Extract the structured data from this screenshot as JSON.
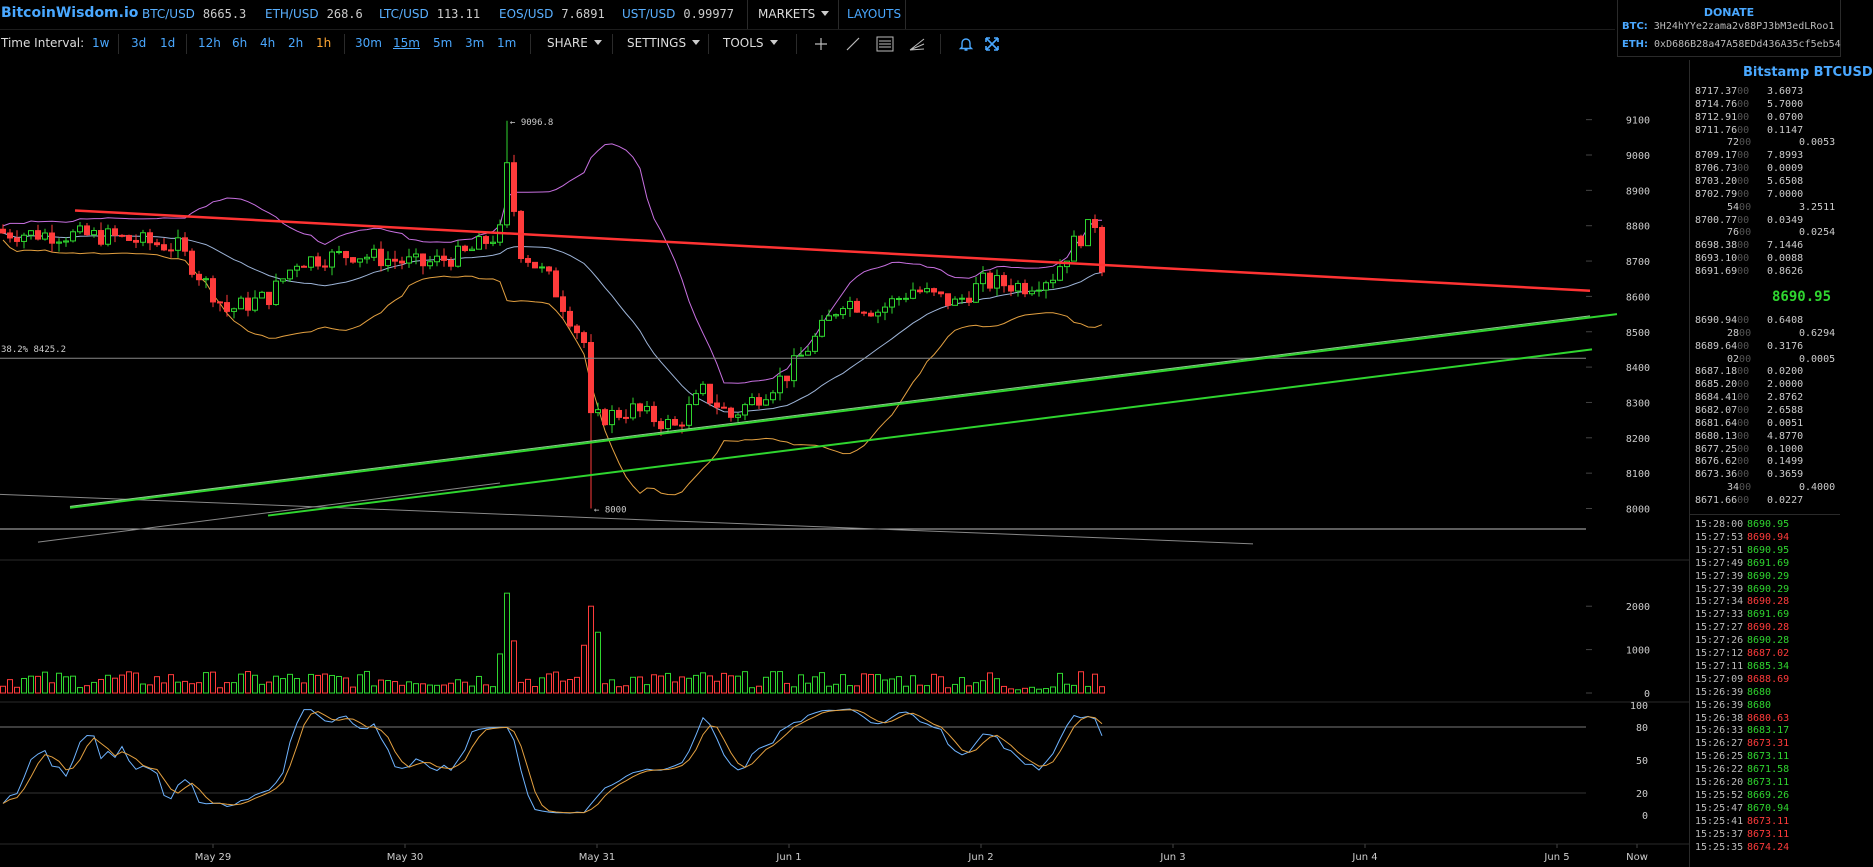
{
  "header": {
    "logo": "BitcoinWisdom.io",
    "tickers": [
      {
        "name": "BTC/USD",
        "value": "8665.3"
      },
      {
        "name": "ETH/USD",
        "value": "268.6"
      },
      {
        "name": "LTC/USD",
        "value": "113.11"
      },
      {
        "name": "EOS/USD",
        "value": "7.6891"
      },
      {
        "name": "UST/USD",
        "value": "0.99977"
      }
    ],
    "markets_label": "MARKETS",
    "layouts_label": "LAYOUTS"
  },
  "donate": {
    "title": "DONATE",
    "btc_label": "BTC:",
    "btc_address": "3H24hYYe2zama2v88PJ3bM3edLRoo1",
    "eth_label": "ETH:",
    "eth_address": "0xD686B28a47A58EDd436A35cf5eb54"
  },
  "toolbar": {
    "time_interval_label": "Time Interval:",
    "intervals": [
      "1w",
      "3d",
      "1d",
      "12h",
      "6h",
      "4h",
      "2h",
      "1h",
      "30m",
      "15m",
      "5m",
      "3m",
      "1m"
    ],
    "active_interval": "1h",
    "underlined_interval": "15m",
    "share_label": "SHARE",
    "settings_label": "SETTINGS",
    "tools_label": "TOOLS",
    "tool_icons": [
      "crosshair-icon",
      "draw-line-icon",
      "horizontal-lines-icon",
      "fan-lines-icon",
      "alert-bell-icon",
      "fullscreen-icon"
    ]
  },
  "colors": {
    "up": "#2fd52f",
    "down": "#ff3b3b",
    "accent_blue": "#4aa8ff",
    "active_orange": "#ffa733",
    "trendline_red": "#ff3333",
    "trendline_green": "#2fd52f",
    "band_purple": "#c770e0",
    "band_orange": "#e3a040"
  },
  "chart_data": {
    "type": "candlestick",
    "x_ticks": [
      "May 29",
      "May 30",
      "May 31",
      "Jun 1",
      "Jun 2",
      "Jun 3",
      "Jun 4",
      "Jun 5",
      "Now"
    ],
    "price_axis_ticks": [
      8000,
      8100,
      8200,
      8300,
      8400,
      8500,
      8600,
      8700,
      8800,
      8900,
      9000,
      9100
    ],
    "volume_axis_ticks": [
      0,
      1000,
      2000
    ],
    "stoch_axis_ticks": [
      0,
      20,
      50,
      80,
      100
    ],
    "annotations": {
      "high": "← 9096.8",
      "low": "← 8000",
      "fib": "38.2% 8425.2"
    },
    "fib_level": 8425.2,
    "high_value": 9096.8,
    "low_value": 8000,
    "last_price": 8690.95
  },
  "right_panel": {
    "title": "Bitstamp BTCUSD",
    "last_price": "8690.95",
    "asks": [
      {
        "p": "8717.37",
        "a": "3.6073"
      },
      {
        "p": "8714.76",
        "a": "5.7000"
      },
      {
        "p": "8712.91",
        "a": "0.0700"
      },
      {
        "p": "8711.76",
        "a": "0.1147"
      },
      {
        "p": "72",
        "a": "0.0053"
      },
      {
        "p": "8709.17",
        "a": "7.8993"
      },
      {
        "p": "8706.73",
        "a": "0.0009"
      },
      {
        "p": "8703.20",
        "a": "5.6508"
      },
      {
        "p": "8702.79",
        "a": "7.0000"
      },
      {
        "p": "54",
        "a": "3.2511"
      },
      {
        "p": "8700.77",
        "a": "0.0349"
      },
      {
        "p": "76",
        "a": "0.0254"
      },
      {
        "p": "8698.38",
        "a": "7.1446"
      },
      {
        "p": "8693.10",
        "a": "0.0088"
      },
      {
        "p": "8691.69",
        "a": "0.8626"
      }
    ],
    "bids": [
      {
        "p": "8690.94",
        "a": "0.6408"
      },
      {
        "p": "28",
        "a": "0.6294"
      },
      {
        "p": "8689.64",
        "a": "0.3176"
      },
      {
        "p": "02",
        "a": "0.0005"
      },
      {
        "p": "8687.18",
        "a": "0.0200"
      },
      {
        "p": "8685.20",
        "a": "2.0000"
      },
      {
        "p": "8684.41",
        "a": "2.8762"
      },
      {
        "p": "8682.07",
        "a": "2.6588"
      },
      {
        "p": "8681.64",
        "a": "0.0051"
      },
      {
        "p": "8680.13",
        "a": "4.8770"
      },
      {
        "p": "8677.25",
        "a": "0.1000"
      },
      {
        "p": "8676.62",
        "a": "0.1499"
      },
      {
        "p": "8673.36",
        "a": "0.3659"
      },
      {
        "p": "34",
        "a": "0.4000"
      },
      {
        "p": "8671.66",
        "a": "0.0227"
      }
    ],
    "trades": [
      {
        "t": "15:28:00",
        "p": "8690.95",
        "d": "up"
      },
      {
        "t": "15:27:53",
        "p": "8690.94",
        "d": "dn"
      },
      {
        "t": "15:27:51",
        "p": "8690.95",
        "d": "up"
      },
      {
        "t": "15:27:49",
        "p": "8691.69",
        "d": "up"
      },
      {
        "t": "15:27:39",
        "p": "8690.29",
        "d": "up"
      },
      {
        "t": "15:27:39",
        "p": "8690.29",
        "d": "up"
      },
      {
        "t": "15:27:34",
        "p": "8690.28",
        "d": "dn"
      },
      {
        "t": "15:27:33",
        "p": "8691.69",
        "d": "up"
      },
      {
        "t": "15:27:27",
        "p": "8690.28",
        "d": "dn"
      },
      {
        "t": "15:27:26",
        "p": "8690.28",
        "d": "up"
      },
      {
        "t": "15:27:12",
        "p": "8687.02",
        "d": "dn"
      },
      {
        "t": "15:27:11",
        "p": "8685.34",
        "d": "up"
      },
      {
        "t": "15:27:09",
        "p": "8688.69",
        "d": "dn"
      },
      {
        "t": "15:26:39",
        "p": "8680",
        "d": "up"
      },
      {
        "t": "15:26:39",
        "p": "8680",
        "d": "up"
      },
      {
        "t": "15:26:38",
        "p": "8680.63",
        "d": "dn"
      },
      {
        "t": "15:26:33",
        "p": "8683.17",
        "d": "up"
      },
      {
        "t": "15:26:27",
        "p": "8673.31",
        "d": "dn"
      },
      {
        "t": "15:26:25",
        "p": "8673.11",
        "d": "up"
      },
      {
        "t": "15:26:22",
        "p": "8671.58",
        "d": "up"
      },
      {
        "t": "15:26:20",
        "p": "8673.11",
        "d": "up"
      },
      {
        "t": "15:25:52",
        "p": "8669.26",
        "d": "up"
      },
      {
        "t": "15:25:47",
        "p": "8670.94",
        "d": "up"
      },
      {
        "t": "15:25:41",
        "p": "8673.11",
        "d": "dn"
      },
      {
        "t": "15:25:37",
        "p": "8673.11",
        "d": "dn"
      },
      {
        "t": "15:25:35",
        "p": "8674.24",
        "d": "dn"
      }
    ]
  }
}
